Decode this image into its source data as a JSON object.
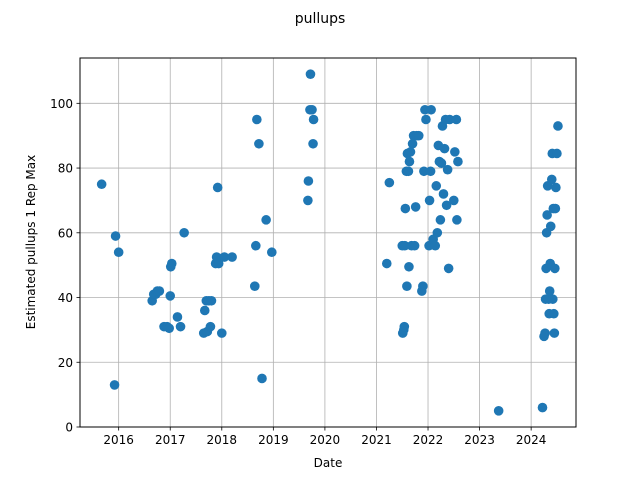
{
  "chart_data": {
    "type": "scatter",
    "title": "pullups",
    "xlabel": "Date",
    "ylabel": "Estimated pullups 1 Rep Max",
    "xlim": [
      2015.25,
      2024.87
    ],
    "ylim": [
      0,
      114
    ],
    "x_ticks": [
      2016,
      2017,
      2018,
      2019,
      2020,
      2021,
      2022,
      2023,
      2024
    ],
    "x_tick_labels": [
      "2016",
      "2017",
      "2018",
      "2019",
      "2020",
      "2021",
      "2022",
      "2023",
      "2024"
    ],
    "y_ticks": [
      0,
      20,
      40,
      60,
      80,
      100
    ],
    "y_tick_labels": [
      "0",
      "20",
      "40",
      "60",
      "80",
      "100"
    ],
    "grid": true,
    "marker_color": "#1f77b4",
    "series": [
      {
        "points": [
          [
            2015.67,
            75
          ],
          [
            2015.92,
            13
          ],
          [
            2015.94,
            59
          ],
          [
            2016.0,
            54
          ],
          [
            2016.65,
            39
          ],
          [
            2016.68,
            41
          ],
          [
            2016.72,
            41
          ],
          [
            2016.75,
            42
          ],
          [
            2016.79,
            42
          ],
          [
            2016.88,
            31
          ],
          [
            2016.94,
            31
          ],
          [
            2016.98,
            30.5
          ],
          [
            2017.0,
            40.5
          ],
          [
            2017.01,
            49.5
          ],
          [
            2017.03,
            50.5
          ],
          [
            2017.14,
            34
          ],
          [
            2017.2,
            31
          ],
          [
            2017.27,
            60
          ],
          [
            2017.65,
            29
          ],
          [
            2017.67,
            36
          ],
          [
            2017.7,
            39
          ],
          [
            2017.72,
            29.5
          ],
          [
            2017.75,
            39
          ],
          [
            2017.78,
            31
          ],
          [
            2017.8,
            39
          ],
          [
            2017.88,
            50.5
          ],
          [
            2017.9,
            52.5
          ],
          [
            2017.92,
            74
          ],
          [
            2017.94,
            50.5
          ],
          [
            2018.0,
            29
          ],
          [
            2018.05,
            52.5
          ],
          [
            2018.2,
            52.5
          ],
          [
            2018.64,
            43.5
          ],
          [
            2018.66,
            56
          ],
          [
            2018.68,
            95
          ],
          [
            2018.72,
            87.5
          ],
          [
            2018.78,
            15
          ],
          [
            2018.86,
            64
          ],
          [
            2018.97,
            54
          ],
          [
            2019.67,
            70
          ],
          [
            2019.68,
            76
          ],
          [
            2019.71,
            98
          ],
          [
            2019.72,
            109
          ],
          [
            2019.75,
            98
          ],
          [
            2019.77,
            87.5
          ],
          [
            2019.78,
            95
          ],
          [
            2021.2,
            50.5
          ],
          [
            2021.25,
            75.5
          ],
          [
            2021.5,
            56
          ],
          [
            2021.51,
            29
          ],
          [
            2021.53,
            30
          ],
          [
            2021.54,
            31
          ],
          [
            2021.55,
            56
          ],
          [
            2021.56,
            67.5
          ],
          [
            2021.58,
            79
          ],
          [
            2021.59,
            43.5
          ],
          [
            2021.6,
            84.5
          ],
          [
            2021.62,
            79
          ],
          [
            2021.63,
            49.5
          ],
          [
            2021.64,
            82
          ],
          [
            2021.66,
            85
          ],
          [
            2021.68,
            56
          ],
          [
            2021.7,
            87.5
          ],
          [
            2021.72,
            90
          ],
          [
            2021.74,
            56
          ],
          [
            2021.76,
            68
          ],
          [
            2021.78,
            90
          ],
          [
            2021.82,
            90
          ],
          [
            2021.88,
            42
          ],
          [
            2021.9,
            43.5
          ],
          [
            2021.92,
            79
          ],
          [
            2021.94,
            98
          ],
          [
            2021.96,
            95
          ],
          [
            2022.02,
            56
          ],
          [
            2022.03,
            70
          ],
          [
            2022.05,
            79
          ],
          [
            2022.06,
            98
          ],
          [
            2022.1,
            58
          ],
          [
            2022.14,
            56
          ],
          [
            2022.16,
            74.5
          ],
          [
            2022.18,
            60
          ],
          [
            2022.2,
            87
          ],
          [
            2022.22,
            82
          ],
          [
            2022.24,
            64
          ],
          [
            2022.26,
            81.5
          ],
          [
            2022.28,
            93
          ],
          [
            2022.3,
            72
          ],
          [
            2022.32,
            86
          ],
          [
            2022.34,
            95
          ],
          [
            2022.36,
            68.5
          ],
          [
            2022.38,
            79.5
          ],
          [
            2022.4,
            49
          ],
          [
            2022.42,
            95
          ],
          [
            2022.5,
            70
          ],
          [
            2022.52,
            85
          ],
          [
            2022.55,
            95
          ],
          [
            2022.56,
            64
          ],
          [
            2022.58,
            82
          ],
          [
            2023.37,
            5
          ],
          [
            2024.22,
            6
          ],
          [
            2024.25,
            28
          ],
          [
            2024.27,
            29
          ],
          [
            2024.28,
            39.5
          ],
          [
            2024.29,
            49
          ],
          [
            2024.3,
            60
          ],
          [
            2024.31,
            65.5
          ],
          [
            2024.32,
            74.5
          ],
          [
            2024.34,
            39.5
          ],
          [
            2024.35,
            35
          ],
          [
            2024.36,
            42
          ],
          [
            2024.37,
            50.5
          ],
          [
            2024.38,
            62
          ],
          [
            2024.4,
            76.5
          ],
          [
            2024.41,
            84.5
          ],
          [
            2024.42,
            39.5
          ],
          [
            2024.43,
            67.5
          ],
          [
            2024.44,
            35
          ],
          [
            2024.45,
            29
          ],
          [
            2024.46,
            49
          ],
          [
            2024.47,
            67.5
          ],
          [
            2024.48,
            74
          ],
          [
            2024.5,
            84.5
          ],
          [
            2024.52,
            93
          ]
        ]
      }
    ]
  }
}
